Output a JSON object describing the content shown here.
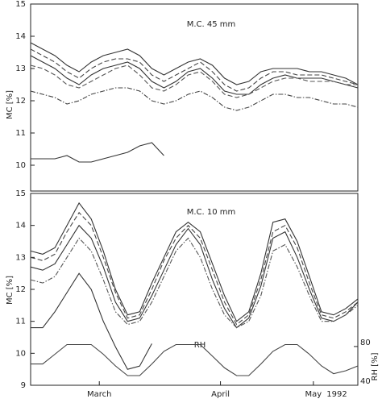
{
  "chart_data": [
    {
      "type": "line",
      "title": "M.C. 45 mm",
      "ylabel": "MC [%]",
      "x": [
        0,
        3,
        6,
        9,
        12,
        15,
        18,
        21,
        24,
        27,
        30,
        33,
        36,
        39,
        42,
        45,
        48,
        51,
        54,
        57,
        60,
        63,
        66,
        69,
        72,
        75,
        78,
        81
      ],
      "xlim": [
        0,
        81
      ],
      "ylim": [
        9.2,
        15
      ],
      "yticks": [
        10,
        11,
        12,
        13,
        14,
        15
      ],
      "series": [
        {
          "color": "#333333",
          "style": "solid",
          "values": [
            13.8,
            13.6,
            13.4,
            13.1,
            12.9,
            13.2,
            13.4,
            13.5,
            13.6,
            13.4,
            13.0,
            12.8,
            13.0,
            13.2,
            13.3,
            13.1,
            12.7,
            12.5,
            12.6,
            12.9,
            13.0,
            13.0,
            13.0,
            12.9,
            12.9,
            12.8,
            12.7,
            12.5
          ]
        },
        {
          "color": "#444444",
          "style": "dashed",
          "values": [
            13.6,
            13.4,
            13.2,
            12.9,
            12.7,
            13.0,
            13.2,
            13.3,
            13.3,
            13.2,
            12.8,
            12.6,
            12.8,
            13.0,
            13.2,
            12.9,
            12.5,
            12.3,
            12.4,
            12.7,
            12.9,
            12.9,
            12.8,
            12.8,
            12.8,
            12.7,
            12.6,
            12.5
          ]
        },
        {
          "color": "#333333",
          "style": "solid",
          "values": [
            13.4,
            13.2,
            13.0,
            12.7,
            12.5,
            12.8,
            13.0,
            13.1,
            13.2,
            13.0,
            12.6,
            12.4,
            12.6,
            12.9,
            13.0,
            12.7,
            12.3,
            12.2,
            12.2,
            12.5,
            12.7,
            12.8,
            12.7,
            12.7,
            12.7,
            12.6,
            12.5,
            12.4
          ]
        },
        {
          "color": "#555555",
          "style": "dashed",
          "values": [
            13.1,
            13.0,
            12.8,
            12.5,
            12.4,
            12.6,
            12.8,
            13.0,
            13.1,
            12.8,
            12.4,
            12.3,
            12.5,
            12.8,
            12.9,
            12.6,
            12.2,
            12.1,
            12.2,
            12.4,
            12.6,
            12.7,
            12.7,
            12.6,
            12.6,
            12.6,
            12.5,
            12.5
          ]
        },
        {
          "color": "#444444",
          "style": "dashdot",
          "values": [
            12.3,
            12.2,
            12.1,
            11.9,
            12.0,
            12.2,
            12.3,
            12.4,
            12.4,
            12.3,
            12.0,
            11.9,
            12.0,
            12.2,
            12.3,
            12.1,
            11.8,
            11.7,
            11.8,
            12.0,
            12.2,
            12.2,
            12.1,
            12.1,
            12.0,
            11.9,
            11.9,
            11.8
          ]
        },
        {
          "color": "#333333",
          "style": "solid",
          "values": [
            10.2,
            10.2,
            10.2,
            10.3,
            10.1,
            10.1,
            10.2,
            10.3,
            10.4,
            10.6,
            10.7,
            10.3,
            null,
            null,
            null,
            null,
            null,
            null,
            null,
            null,
            null,
            null,
            null,
            null,
            null,
            null,
            null,
            null
          ]
        }
      ]
    },
    {
      "type": "line",
      "title": "M.C. 10 mm",
      "ylabel": "MC [%]",
      "y2label": "RH [%]",
      "annotation": "RH",
      "year": "1992",
      "x": [
        0,
        3,
        6,
        9,
        12,
        15,
        18,
        21,
        24,
        27,
        30,
        33,
        36,
        39,
        42,
        45,
        48,
        51,
        54,
        57,
        60,
        63,
        66,
        69,
        72,
        75,
        78,
        81
      ],
      "xlim": [
        0,
        81
      ],
      "xticks": [
        {
          "value": 17,
          "label": "March"
        },
        {
          "value": 47,
          "label": "April"
        },
        {
          "value": 70,
          "label": "May"
        }
      ],
      "ylim": [
        9,
        15
      ],
      "yticks": [
        9,
        10,
        11,
        12,
        13,
        14,
        15
      ],
      "y2lim": [
        40,
        238
      ],
      "y2ticks": [
        40,
        80
      ],
      "series": [
        {
          "color": "#333333",
          "style": "solid",
          "values": [
            13.2,
            13.1,
            13.3,
            14.0,
            14.7,
            14.2,
            13.2,
            12.0,
            11.2,
            11.3,
            12.2,
            13.0,
            13.8,
            14.1,
            13.8,
            12.8,
            11.8,
            11.0,
            11.3,
            12.5,
            14.1,
            14.2,
            13.5,
            12.4,
            11.3,
            11.2,
            11.4,
            11.7
          ]
        },
        {
          "color": "#444444",
          "style": "dashed",
          "values": [
            13.0,
            12.9,
            13.1,
            13.8,
            14.4,
            14.0,
            13.0,
            11.9,
            11.1,
            11.2,
            12.0,
            12.9,
            13.6,
            14.0,
            13.6,
            12.6,
            11.6,
            10.9,
            11.2,
            12.3,
            13.8,
            14.0,
            13.3,
            12.2,
            11.2,
            11.1,
            11.3,
            11.6
          ]
        },
        {
          "color": "#333333",
          "style": "solid",
          "values": [
            12.7,
            12.6,
            12.8,
            13.4,
            14.0,
            13.6,
            12.7,
            11.6,
            11.0,
            11.1,
            11.8,
            12.6,
            13.4,
            13.9,
            13.4,
            12.3,
            11.4,
            10.8,
            11.1,
            12.1,
            13.6,
            13.8,
            13.0,
            12.0,
            11.1,
            11.0,
            11.2,
            11.6
          ]
        },
        {
          "color": "#555555",
          "style": "dashdot",
          "values": [
            12.3,
            12.2,
            12.4,
            13.0,
            13.6,
            13.2,
            12.3,
            11.3,
            10.9,
            11.0,
            11.6,
            12.4,
            13.2,
            13.6,
            13.0,
            12.0,
            11.2,
            10.8,
            11.0,
            11.8,
            13.2,
            13.4,
            12.7,
            11.8,
            11.0,
            11.0,
            11.2,
            11.5
          ]
        },
        {
          "color": "#333333",
          "style": "solid",
          "values": [
            10.8,
            10.8,
            11.3,
            11.9,
            12.5,
            12.0,
            11.0,
            10.2,
            9.5,
            9.6,
            10.3,
            null,
            null,
            null,
            null,
            null,
            null,
            null,
            null,
            null,
            null,
            null,
            null,
            null,
            null,
            null,
            null,
            null
          ]
        },
        {
          "color": "#444444",
          "style": "solid",
          "axis": "y2",
          "values": [
            62,
            62,
            72,
            82,
            82,
            82,
            72,
            60,
            50,
            50,
            62,
            75,
            82,
            82,
            82,
            70,
            58,
            50,
            50,
            62,
            75,
            82,
            82,
            72,
            60,
            52,
            55,
            60
          ]
        }
      ]
    }
  ]
}
